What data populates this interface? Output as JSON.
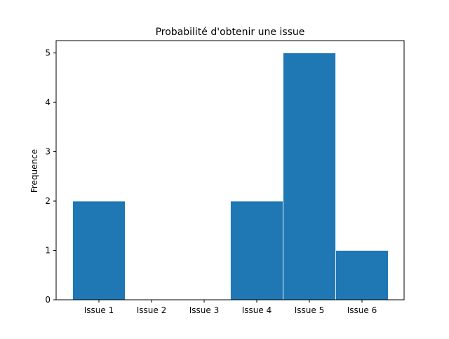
{
  "chart_data": {
    "type": "bar",
    "title": "Probabilité d'obtenir une issue",
    "xlabel": "",
    "ylabel": "Frequence",
    "categories": [
      "Issue 1",
      "Issue 2",
      "Issue 3",
      "Issue 4",
      "Issue 5",
      "Issue 6"
    ],
    "values": [
      2,
      0,
      0,
      2,
      5,
      1
    ],
    "ylim": [
      0,
      5.25
    ],
    "yticks": [
      0,
      1,
      2,
      3,
      4,
      5
    ],
    "grid": false,
    "legend": "none",
    "bar_color": "#1f77b4"
  }
}
